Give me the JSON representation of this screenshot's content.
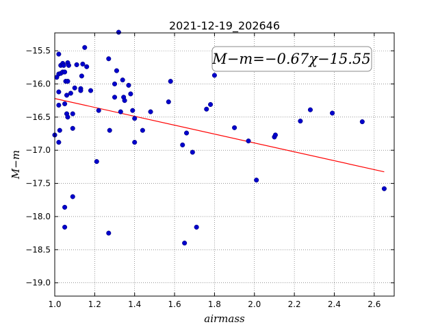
{
  "chart_data": {
    "type": "scatter",
    "title": "2021-12-19_202646",
    "xlabel": "airmass",
    "ylabel": "M−m",
    "xlim": [
      1.0,
      2.7
    ],
    "ylim": [
      -19.2,
      -15.23
    ],
    "y_inverted": true,
    "grid": true,
    "xticks": [
      1.0,
      1.2,
      1.4,
      1.6,
      1.8,
      2.0,
      2.2,
      2.4,
      2.6
    ],
    "xtick_labels": [
      "1.0",
      "1.2",
      "1.4",
      "1.6",
      "1.8",
      "2.0",
      "2.2",
      "2.4",
      "2.6"
    ],
    "yticks": [
      -15.5,
      -16.0,
      -16.5,
      -17.0,
      -17.5,
      -18.0,
      -18.5,
      -19.0
    ],
    "ytick_labels": [
      "−15.5",
      "−16.0",
      "−16.5",
      "−17.0",
      "−17.5",
      "−18.0",
      "−18.5",
      "−19.0"
    ],
    "fit": {
      "label": "M−m=−0.67χ−15.55",
      "slope": -0.67,
      "intercept": -15.55,
      "x_range": [
        1.0,
        2.65
      ],
      "color": "#ff0000"
    },
    "marker_color": "#0000cc",
    "points": [
      [
        1.0,
        -16.77
      ],
      [
        1.01,
        -15.9
      ],
      [
        1.02,
        -15.55
      ],
      [
        1.02,
        -15.85
      ],
      [
        1.02,
        -16.12
      ],
      [
        1.02,
        -16.32
      ],
      [
        1.02,
        -16.88
      ],
      [
        1.025,
        -16.7
      ],
      [
        1.03,
        -15.72
      ],
      [
        1.03,
        -15.84
      ],
      [
        1.04,
        -15.69
      ],
      [
        1.04,
        -15.82
      ],
      [
        1.045,
        -15.72
      ],
      [
        1.05,
        -15.82
      ],
      [
        1.05,
        -16.3
      ],
      [
        1.055,
        -15.96
      ],
      [
        1.06,
        -16.17
      ],
      [
        1.05,
        -17.86
      ],
      [
        1.06,
        -16.45
      ],
      [
        1.065,
        -16.5
      ],
      [
        1.065,
        -15.96
      ],
      [
        1.065,
        -15.68
      ],
      [
        1.07,
        -15.72
      ],
      [
        1.08,
        -16.14
      ],
      [
        1.09,
        -16.45
      ],
      [
        1.09,
        -16.67
      ],
      [
        1.09,
        -17.7
      ],
      [
        1.1,
        -16.06
      ],
      [
        1.11,
        -15.71
      ],
      [
        1.13,
        -16.07
      ],
      [
        1.13,
        -16.1
      ],
      [
        1.135,
        -15.88
      ],
      [
        1.14,
        -15.7
      ],
      [
        1.15,
        -15.45
      ],
      [
        1.16,
        -15.74
      ],
      [
        1.18,
        -16.1
      ],
      [
        1.21,
        -17.17
      ],
      [
        1.22,
        -16.4
      ],
      [
        1.27,
        -15.62
      ],
      [
        1.275,
        -16.7
      ],
      [
        1.3,
        -16.0
      ],
      [
        1.3,
        -16.2
      ],
      [
        1.31,
        -15.8
      ],
      [
        1.32,
        -15.22
      ],
      [
        1.33,
        -16.42
      ],
      [
        1.34,
        -15.94
      ],
      [
        1.345,
        -16.2
      ],
      [
        1.35,
        -16.25
      ],
      [
        1.37,
        -16.02
      ],
      [
        1.38,
        -16.15
      ],
      [
        1.39,
        -16.4
      ],
      [
        1.4,
        -16.52
      ],
      [
        1.4,
        -16.88
      ],
      [
        1.44,
        -16.7
      ],
      [
        1.48,
        -16.42
      ],
      [
        1.57,
        -16.27
      ],
      [
        1.58,
        -15.96
      ],
      [
        1.64,
        -16.92
      ],
      [
        1.66,
        -16.74
      ],
      [
        1.69,
        -17.03
      ],
      [
        1.71,
        -18.16
      ],
      [
        1.65,
        -18.4
      ],
      [
        1.76,
        -16.38
      ],
      [
        1.78,
        -16.31
      ],
      [
        1.8,
        -15.87
      ],
      [
        1.9,
        -16.66
      ],
      [
        1.97,
        -16.86
      ],
      [
        2.01,
        -17.45
      ],
      [
        2.1,
        -16.8
      ],
      [
        2.105,
        -16.77
      ],
      [
        2.23,
        -16.56
      ],
      [
        2.28,
        -16.39
      ],
      [
        2.39,
        -16.44
      ],
      [
        2.54,
        -16.57
      ],
      [
        2.65,
        -17.58
      ],
      [
        1.05,
        -18.16
      ],
      [
        1.27,
        -18.25
      ]
    ]
  }
}
